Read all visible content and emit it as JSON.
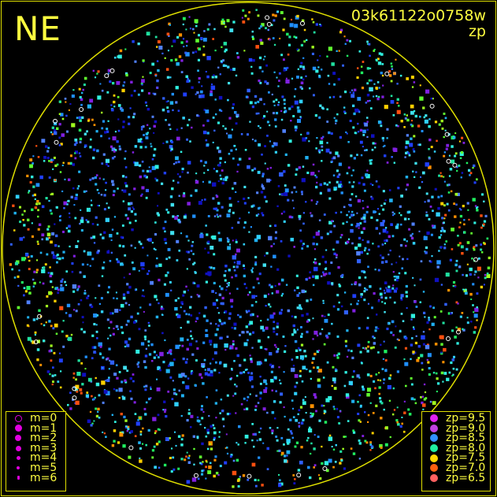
{
  "header": {
    "field": "NE",
    "exposure_id": "03k61122o0758w",
    "color_key": "zp"
  },
  "legend_magnitude": {
    "items": [
      {
        "label": "m=0",
        "hollow": true
      },
      {
        "label": "m=1"
      },
      {
        "label": "m=2"
      },
      {
        "label": "m=3"
      },
      {
        "label": "m=4"
      },
      {
        "label": "m=5"
      },
      {
        "label": "m=6"
      }
    ],
    "color": "#e000e0"
  },
  "legend_zp": {
    "items": [
      {
        "label": "zp=9.5",
        "color": "#e020f0"
      },
      {
        "label": "zp=9.0",
        "color": "#c040e0"
      },
      {
        "label": "zp=8.5",
        "color": "#3090ff"
      },
      {
        "label": "zp=8.0",
        "color": "#20f0a0"
      },
      {
        "label": "zp=7.5",
        "color": "#ffd800"
      },
      {
        "label": "zp=7.0",
        "color": "#ff6010"
      },
      {
        "label": "zp=6.5",
        "color": "#ff6060"
      }
    ]
  },
  "chart_data": {
    "type": "scatter",
    "title": "03k61122o0758w",
    "subtitle": "zp",
    "field_label": "NE",
    "description_of_marks": "star positions within circular all-sky field; size encodes magnitude m (0-6), color encodes zero point zp (6.5-9.5)",
    "zp_distribution": "center dominated by zp 8.5-9.5 (blue/violet/cyan), edges and lower-right by zp 7.0-8.0 (green/yellow/orange)",
    "boundary_color": "#e0e000"
  }
}
